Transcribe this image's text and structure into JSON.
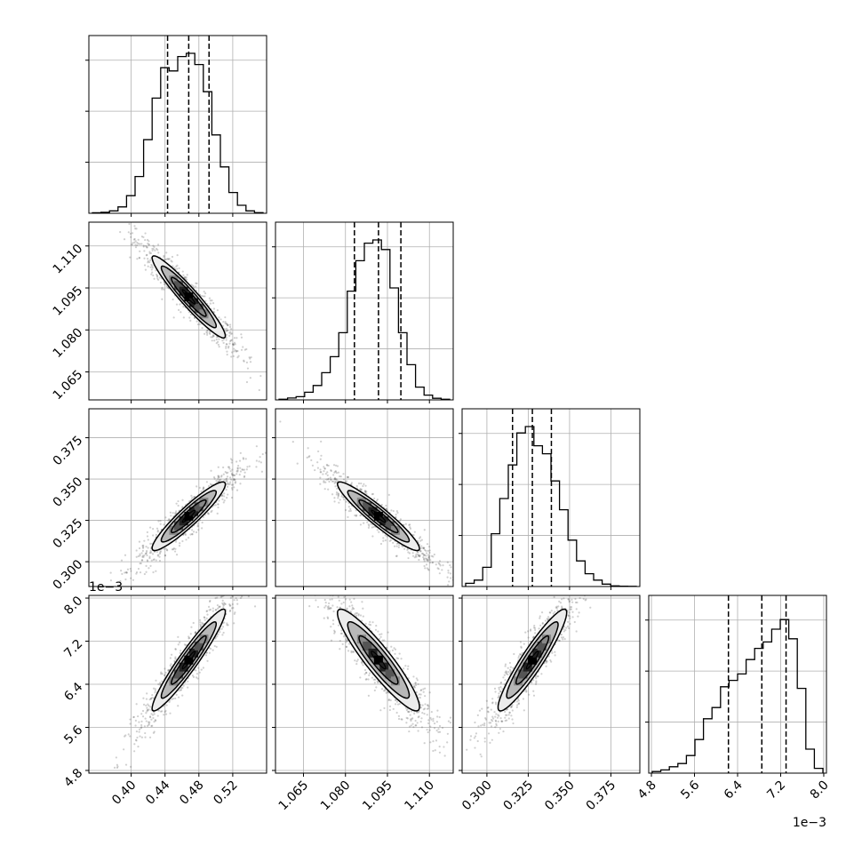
{
  "chart_data": {
    "type": "corner",
    "grid": true,
    "params": [
      {
        "key": "p0",
        "range": [
          0.35,
          0.56
        ],
        "ticks": [
          "0.40",
          "0.44",
          "0.48",
          "0.52"
        ],
        "tick_values": [
          0.4,
          0.44,
          0.48,
          0.52
        ],
        "quantiles": [
          0.443,
          0.468,
          0.492
        ],
        "offset": "",
        "offset_y": ""
      },
      {
        "key": "p1",
        "range": [
          1.055,
          1.1185
        ],
        "ticks": [
          "1.065",
          "1.080",
          "1.095",
          "1.110"
        ],
        "tick_values": [
          1.065,
          1.08,
          1.095,
          1.11
        ],
        "quantiles": [
          1.0832,
          1.0918,
          1.0998
        ],
        "offset": "",
        "offset_y": ""
      },
      {
        "key": "p2",
        "range": [
          0.285,
          0.3925
        ],
        "ticks": [
          "0.300",
          "0.325",
          "0.350",
          "0.375"
        ],
        "tick_values": [
          0.3,
          0.325,
          0.35,
          0.375
        ],
        "quantiles": [
          0.3155,
          0.3275,
          0.339
        ],
        "offset": "",
        "offset_y": ""
      },
      {
        "key": "p3",
        "range": [
          4.75,
          8.05
        ],
        "ticks": [
          "4.8",
          "5.6",
          "6.4",
          "7.2",
          "8.0"
        ],
        "tick_values": [
          4.8,
          5.6,
          6.4,
          7.2,
          8.0
        ],
        "quantiles": [
          6.23,
          6.85,
          7.3
        ],
        "offset": "1e−3",
        "offset_y": "1e−3"
      }
    ],
    "histograms": [
      [
        0.003,
        0.006,
        0.015,
        0.04,
        0.11,
        0.23,
        0.46,
        0.72,
        0.91,
        0.89,
        0.98,
        1.0,
        0.93,
        0.76,
        0.49,
        0.29,
        0.13,
        0.05,
        0.015,
        0.004
      ],
      [
        0.004,
        0.012,
        0.02,
        0.048,
        0.09,
        0.17,
        0.27,
        0.42,
        0.68,
        0.87,
        0.98,
        1.0,
        0.94,
        0.7,
        0.42,
        0.22,
        0.08,
        0.03,
        0.01,
        0.004
      ],
      [
        0.02,
        0.04,
        0.12,
        0.33,
        0.55,
        0.76,
        0.96,
        1.0,
        0.88,
        0.83,
        0.66,
        0.48,
        0.29,
        0.16,
        0.08,
        0.04,
        0.015,
        0.004,
        0.002,
        0.001
      ],
      [
        0.01,
        0.02,
        0.04,
        0.06,
        0.11,
        0.21,
        0.34,
        0.41,
        0.54,
        0.58,
        0.62,
        0.71,
        0.78,
        0.82,
        0.9,
        0.96,
        0.84,
        0.53,
        0.15,
        0.03
      ]
    ],
    "correlations": [
      [
        1.0,
        -0.95,
        0.93,
        0.95
      ],
      [
        -0.95,
        1.0,
        -0.94,
        -0.92
      ],
      [
        0.93,
        -0.94,
        1.0,
        0.93
      ],
      [
        0.95,
        -0.92,
        0.93,
        1.0
      ]
    ]
  }
}
